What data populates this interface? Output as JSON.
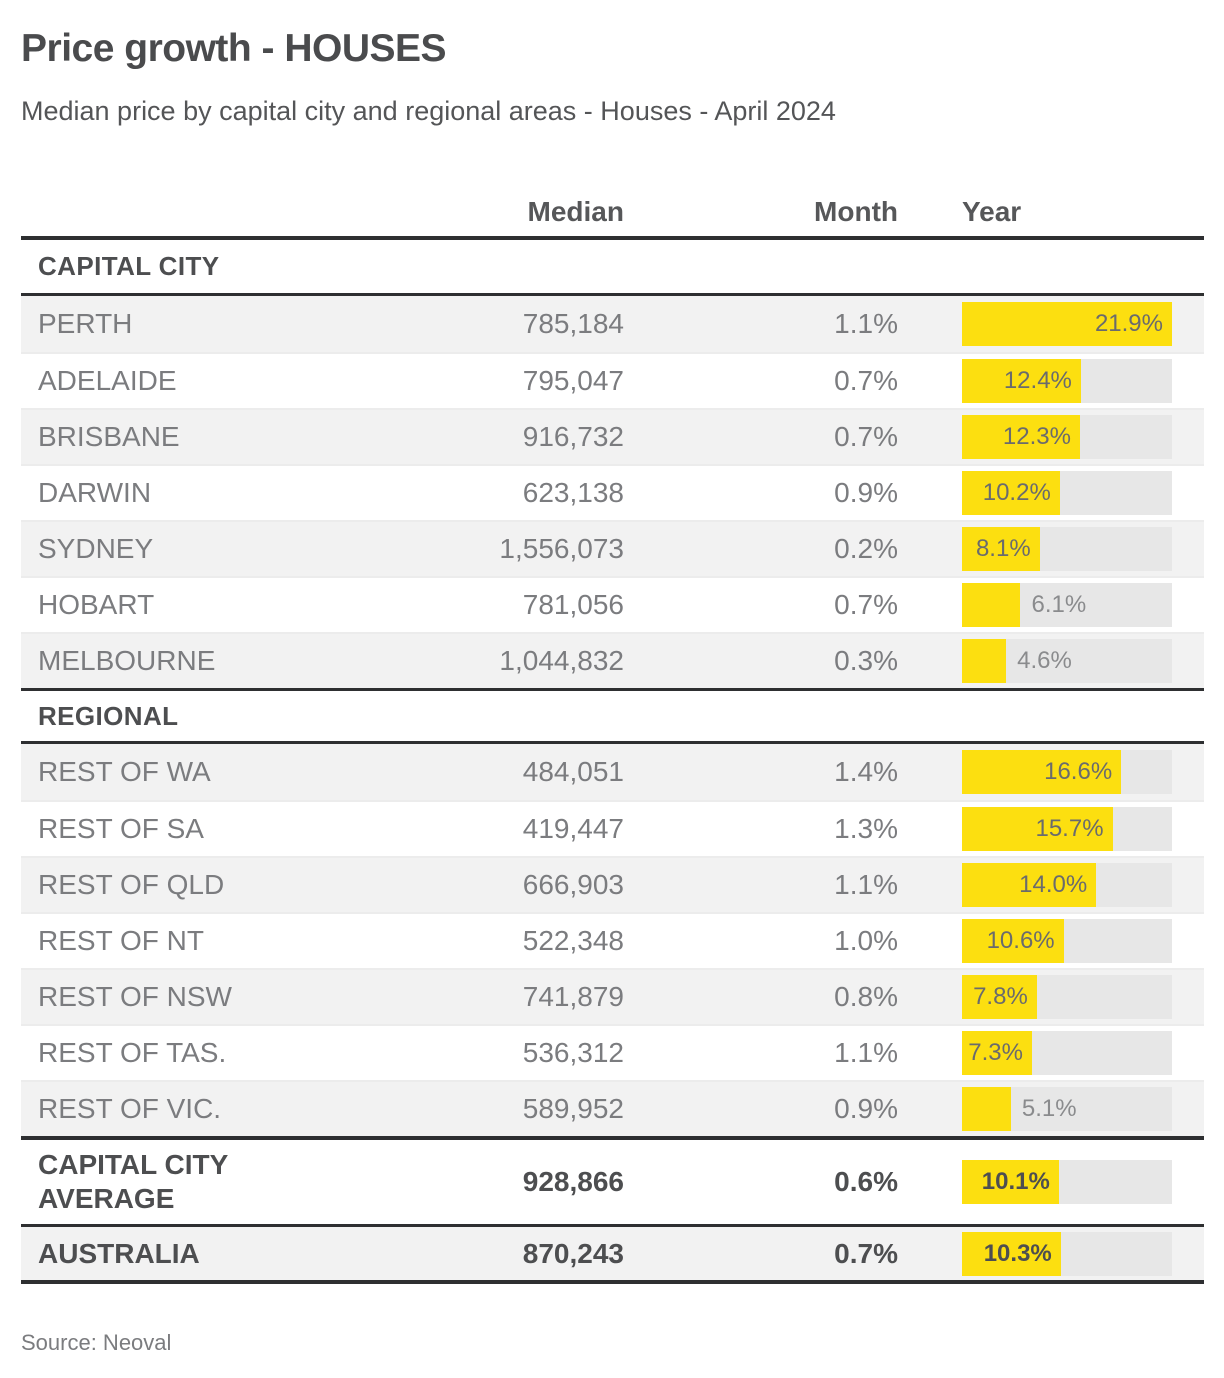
{
  "page": {
    "title": "Price growth - HOUSES",
    "subtitle": "Median price by capital city and regional areas - Houses - April 2024",
    "source": "Source: Neoval"
  },
  "colors": {
    "accent_yellow": "#fcdf10",
    "bar_track": "#e7e7e7",
    "row_alt": "#f2f2f2",
    "border_dark": "#2e2f31"
  },
  "table": {
    "columns": {
      "median": "Median",
      "month": "Month",
      "year": "Year"
    },
    "year_axis_max": 21.9,
    "sections": [
      {
        "label": "CAPITAL CITY",
        "rows": [
          {
            "label": "PERTH",
            "median": "785,184",
            "month": "1.1%",
            "year_label": "21.9%",
            "year_value": 21.9
          },
          {
            "label": "ADELAIDE",
            "median": "795,047",
            "month": "0.7%",
            "year_label": "12.4%",
            "year_value": 12.4
          },
          {
            "label": "BRISBANE",
            "median": "916,732",
            "month": "0.7%",
            "year_label": "12.3%",
            "year_value": 12.3
          },
          {
            "label": "DARWIN",
            "median": "623,138",
            "month": "0.9%",
            "year_label": "10.2%",
            "year_value": 10.2
          },
          {
            "label": "SYDNEY",
            "median": "1,556,073",
            "month": "0.2%",
            "year_label": "8.1%",
            "year_value": 8.1
          },
          {
            "label": "HOBART",
            "median": "781,056",
            "month": "0.7%",
            "year_label": "6.1%",
            "year_value": 6.1
          },
          {
            "label": "MELBOURNE",
            "median": "1,044,832",
            "month": "0.3%",
            "year_label": "4.6%",
            "year_value": 4.6
          }
        ]
      },
      {
        "label": "REGIONAL",
        "rows": [
          {
            "label": "REST OF WA",
            "median": "484,051",
            "month": "1.4%",
            "year_label": "16.6%",
            "year_value": 16.6
          },
          {
            "label": "REST OF SA",
            "median": "419,447",
            "month": "1.3%",
            "year_label": "15.7%",
            "year_value": 15.7
          },
          {
            "label": "REST OF QLD",
            "median": "666,903",
            "month": "1.1%",
            "year_label": "14.0%",
            "year_value": 14.0
          },
          {
            "label": "REST OF NT",
            "median": "522,348",
            "month": "1.0%",
            "year_label": "10.6%",
            "year_value": 10.6
          },
          {
            "label": "REST OF NSW",
            "median": "741,879",
            "month": "0.8%",
            "year_label": "7.8%",
            "year_value": 7.8
          },
          {
            "label": "REST OF TAS.",
            "median": "536,312",
            "month": "1.1%",
            "year_label": "7.3%",
            "year_value": 7.3
          },
          {
            "label": "REST OF VIC.",
            "median": "589,952",
            "month": "0.9%",
            "year_label": "5.1%",
            "year_value": 5.1
          }
        ]
      }
    ],
    "summary_rows": [
      {
        "label": "CAPITAL CITY AVERAGE",
        "median": "928,866",
        "month": "0.6%",
        "year_label": "10.1%",
        "year_value": 10.1
      },
      {
        "label": "AUSTRALIA",
        "median": "870,243",
        "month": "0.7%",
        "year_label": "10.3%",
        "year_value": 10.3
      }
    ]
  },
  "chart_data": {
    "type": "bar",
    "title": "Price growth - HOUSES",
    "subtitle": "Median price by capital city and regional areas - Houses - April 2024",
    "orientation": "horizontal",
    "categories": [
      "PERTH",
      "ADELAIDE",
      "BRISBANE",
      "DARWIN",
      "SYDNEY",
      "HOBART",
      "MELBOURNE",
      "REST OF WA",
      "REST OF SA",
      "REST OF QLD",
      "REST OF NT",
      "REST OF NSW",
      "REST OF TAS.",
      "REST OF VIC.",
      "CAPITAL CITY AVERAGE",
      "AUSTRALIA"
    ],
    "series": [
      {
        "name": "Median",
        "values": [
          785184,
          795047,
          916732,
          623138,
          1556073,
          781056,
          1044832,
          484051,
          419447,
          666903,
          522348,
          741879,
          536312,
          589952,
          928866,
          870243
        ]
      },
      {
        "name": "Month %",
        "values": [
          1.1,
          0.7,
          0.7,
          0.9,
          0.2,
          0.7,
          0.3,
          1.4,
          1.3,
          1.1,
          1.0,
          0.8,
          1.1,
          0.9,
          0.6,
          0.7
        ]
      },
      {
        "name": "Year %",
        "values": [
          21.9,
          12.4,
          12.3,
          10.2,
          8.1,
          6.1,
          4.6,
          16.6,
          15.7,
          14.0,
          10.6,
          7.8,
          7.3,
          5.1,
          10.1,
          10.3
        ]
      }
    ],
    "bar_axis": {
      "series_shown_as_bars": "Year %",
      "min": 0,
      "max": 21.9,
      "unit": "%"
    },
    "legend": "none",
    "grid": "off",
    "source": "Source: Neoval"
  }
}
